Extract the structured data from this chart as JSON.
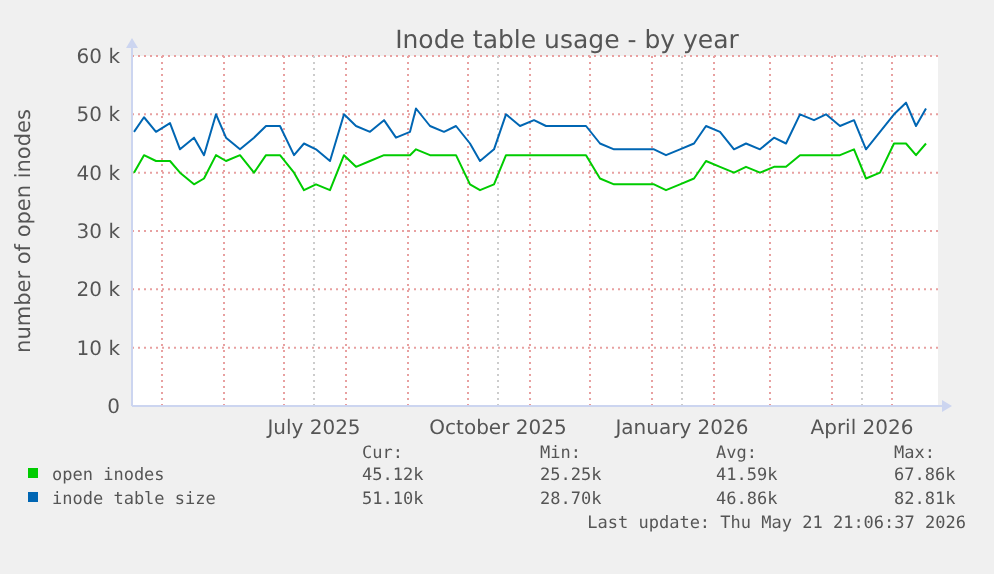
{
  "chart_data": {
    "type": "line",
    "title": "Inode table usage - by year",
    "ylabel": "number of open inodes",
    "x": [
      "2025-04-17",
      "2025-04-22",
      "2025-04-28",
      "2025-05-05",
      "2025-05-10",
      "2025-05-17",
      "2025-05-22",
      "2025-05-28",
      "2025-06-02",
      "2025-06-09",
      "2025-06-16",
      "2025-06-22",
      "2025-06-29",
      "2025-07-06",
      "2025-07-11",
      "2025-07-17",
      "2025-07-24",
      "2025-07-31",
      "2025-08-06",
      "2025-08-13",
      "2025-08-20",
      "2025-08-26",
      "2025-09-02",
      "2025-09-05",
      "2025-09-12",
      "2025-09-19",
      "2025-09-25",
      "2025-10-02",
      "2025-10-07",
      "2025-10-14",
      "2025-10-20",
      "2025-10-27",
      "2025-11-03",
      "2025-11-09",
      "2025-11-16",
      "2025-11-23",
      "2025-11-29",
      "2025-12-06",
      "2025-12-13",
      "2025-12-19",
      "2025-12-26",
      "2026-01-02",
      "2026-01-08",
      "2026-01-15",
      "2026-01-22",
      "2026-01-28",
      "2026-02-04",
      "2026-02-11",
      "2026-02-17",
      "2026-02-24",
      "2026-03-03",
      "2026-03-09",
      "2026-03-16",
      "2026-03-23",
      "2026-03-29",
      "2026-04-05",
      "2026-04-12",
      "2026-04-18",
      "2026-04-25",
      "2026-05-02",
      "2026-05-08",
      "2026-05-13",
      "2026-05-18"
    ],
    "series": [
      {
        "name": "open inodes",
        "color": "#00cc00",
        "values": [
          40000,
          43000,
          42000,
          42000,
          40000,
          38000,
          39000,
          43000,
          42000,
          43000,
          40000,
          43000,
          43000,
          40000,
          37000,
          38000,
          37000,
          43000,
          41000,
          42000,
          43000,
          43000,
          43000,
          44000,
          43000,
          43000,
          43000,
          38000,
          37000,
          38000,
          43000,
          43000,
          43000,
          43000,
          43000,
          43000,
          43000,
          39000,
          38000,
          38000,
          38000,
          38000,
          37000,
          38000,
          39000,
          42000,
          41000,
          40000,
          41000,
          40000,
          41000,
          41000,
          43000,
          43000,
          43000,
          43000,
          44000,
          39000,
          40000,
          45000,
          45000,
          43000,
          45000
        ]
      },
      {
        "name": "inode table size",
        "color": "#0066b3",
        "values": [
          47000,
          49500,
          47000,
          48500,
          44000,
          46000,
          43000,
          50000,
          46000,
          44000,
          46000,
          48000,
          48000,
          43000,
          45000,
          44000,
          42000,
          50000,
          48000,
          47000,
          49000,
          46000,
          47000,
          51000,
          48000,
          47000,
          48000,
          45000,
          42000,
          44000,
          50000,
          48000,
          49000,
          48000,
          48000,
          48000,
          48000,
          45000,
          44000,
          44000,
          44000,
          44000,
          43000,
          44000,
          45000,
          48000,
          47000,
          44000,
          45000,
          44000,
          46000,
          45000,
          50000,
          49000,
          50000,
          48000,
          49000,
          44000,
          47000,
          50000,
          52000,
          48000,
          51000
        ]
      }
    ],
    "xlim": [
      "2025-04-16",
      "2026-05-24"
    ],
    "xticks": [
      {
        "value": "2025-05-01",
        "label": null
      },
      {
        "value": "2025-06-01",
        "label": null
      },
      {
        "value": "2025-07-01",
        "label": null
      },
      {
        "value": "2025-07-16",
        "label": "July 2025"
      },
      {
        "value": "2025-08-01",
        "label": null
      },
      {
        "value": "2025-09-01",
        "label": null
      },
      {
        "value": "2025-10-01",
        "label": null
      },
      {
        "value": "2025-10-16",
        "label": "October 2025"
      },
      {
        "value": "2025-11-01",
        "label": null
      },
      {
        "value": "2025-12-01",
        "label": null
      },
      {
        "value": "2026-01-01",
        "label": null
      },
      {
        "value": "2026-01-16",
        "label": "January 2026"
      },
      {
        "value": "2026-02-01",
        "label": null
      },
      {
        "value": "2026-03-01",
        "label": null
      },
      {
        "value": "2026-04-01",
        "label": null
      },
      {
        "value": "2026-04-16",
        "label": "April 2026"
      },
      {
        "value": "2026-05-01",
        "label": null
      }
    ],
    "ylim": [
      0,
      60000
    ],
    "yticks": [
      0,
      {
        "value": 10000,
        "label": "10 k"
      },
      {
        "value": 20000,
        "label": "20 k"
      },
      {
        "value": 30000,
        "label": "30 k"
      },
      {
        "value": 40000,
        "label": "40 k"
      },
      {
        "value": 50000,
        "label": "50 k"
      },
      {
        "value": 60000,
        "label": "60 k"
      }
    ],
    "grid": true,
    "legend": "bottom",
    "line_style": "solid",
    "annotations": [
      "Cur:",
      "Min:",
      "Avg:",
      "Max:",
      "45.12k",
      "25.25k",
      "41.59k",
      "67.86k",
      "51.10k",
      "28.70k",
      "46.86k",
      "82.81k",
      "Last update: Thu May 21 21:06:37 2026"
    ]
  }
}
